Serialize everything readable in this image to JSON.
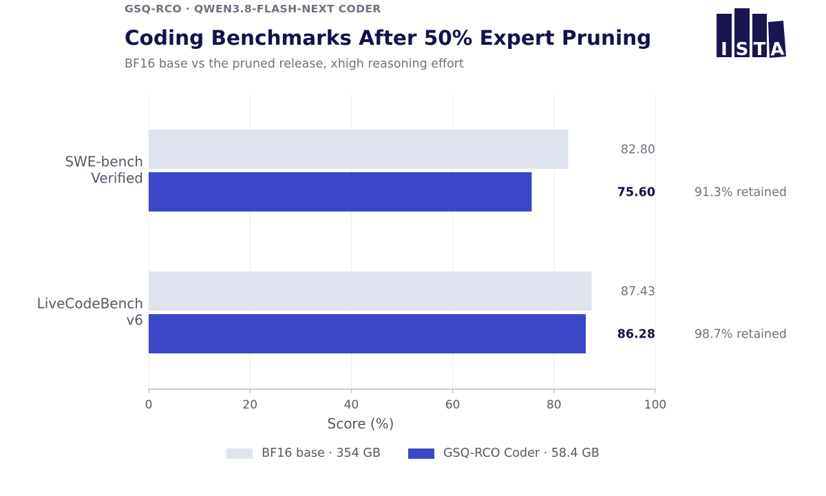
{
  "header": {
    "kicker": "GSQ-RCO  ·  QWEN3.8-FLASH-NEXT CODER",
    "title": "Coding Benchmarks After 50% Expert Pruning",
    "subtitle": "BF16 base vs the pruned release, xhigh reasoning effort"
  },
  "logo": {
    "letters": [
      "I",
      "S",
      "T",
      "A"
    ],
    "color": "#1a1550"
  },
  "chart_data": {
    "type": "bar",
    "orientation": "horizontal",
    "categories": [
      [
        "SWE-bench",
        "Verified"
      ],
      [
        "LiveCodeBench",
        "v6"
      ]
    ],
    "series": [
      {
        "name": "BF16 base  ·  354 GB",
        "color": "#dfe3ee",
        "values": [
          82.8,
          87.43
        ],
        "labels": [
          "82.80",
          "87.43"
        ]
      },
      {
        "name": "GSQ-RCO Coder  ·  58.4 GB",
        "color": "#3a47c6",
        "values": [
          75.6,
          86.28
        ],
        "labels": [
          "75.60",
          "86.28"
        ]
      }
    ],
    "annotations": [
      "91.3% retained",
      "98.7% retained"
    ],
    "xlabel": "Score (%)",
    "xlim": [
      0,
      100
    ],
    "xticks": [
      0,
      20,
      40,
      60,
      80,
      100
    ],
    "grid": true,
    "legend": "bottom-center"
  }
}
